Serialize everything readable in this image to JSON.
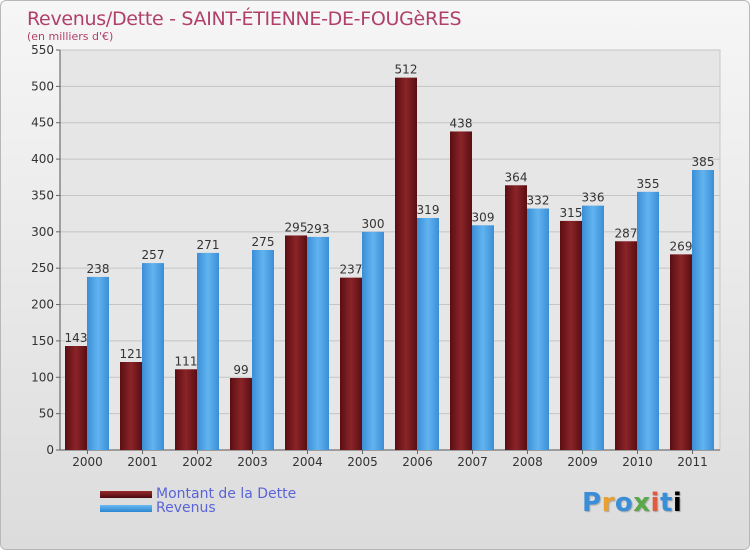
{
  "chart_data": {
    "type": "bar",
    "title": "Revenus/Dette - SAINT-ÉTIENNE-DE-FOUGèRES",
    "subtitle": "(en milliers d'€)",
    "categories": [
      "2000",
      "2001",
      "2002",
      "2003",
      "2004",
      "2005",
      "2006",
      "2007",
      "2008",
      "2009",
      "2010",
      "2011"
    ],
    "series": [
      {
        "name": "Montant de la Dette",
        "values": [
          143,
          121,
          111,
          99,
          295,
          237,
          512,
          438,
          364,
          315,
          287,
          269
        ],
        "color": "#7a1c20"
      },
      {
        "name": "Revenus",
        "values": [
          238,
          257,
          271,
          275,
          293,
          300,
          319,
          309,
          332,
          336,
          355,
          385
        ],
        "color": "#4aa3e6"
      }
    ],
    "yticks": [
      0,
      50,
      100,
      150,
      200,
      250,
      300,
      350,
      400,
      450,
      500,
      550
    ],
    "ylim": [
      0,
      550
    ],
    "grid": true,
    "legend_position": "bottom-left"
  },
  "logo": {
    "letters": [
      "P",
      "r",
      "o",
      "x",
      "i",
      "t",
      "i"
    ]
  }
}
